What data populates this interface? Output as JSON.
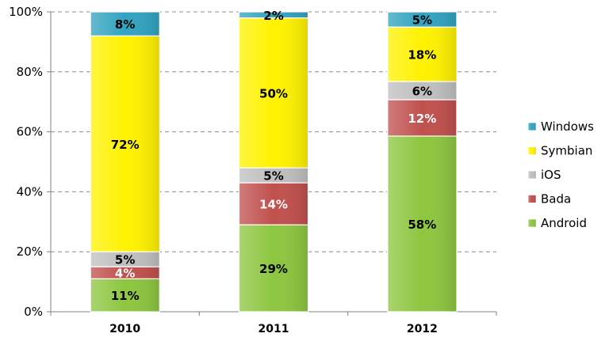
{
  "chart_data": {
    "type": "bar",
    "stacked": true,
    "categories": [
      "2010",
      "2011",
      "2012"
    ],
    "series": [
      {
        "name": "Android",
        "values": [
          11,
          29,
          58
        ],
        "labels": [
          "11%",
          "29%",
          "58%"
        ],
        "color": "#8DC63F"
      },
      {
        "name": "Bada",
        "values": [
          4,
          14,
          12
        ],
        "labels": [
          "4%",
          "14%",
          "12%"
        ],
        "color": "#C0504D"
      },
      {
        "name": "iOS",
        "values": [
          5,
          5,
          6
        ],
        "labels": [
          "5%",
          "5%",
          "6%"
        ],
        "color": "#BFBFBF"
      },
      {
        "name": "Symbian",
        "values": [
          72,
          50,
          18
        ],
        "labels": [
          "72%",
          "50%",
          "18%"
        ],
        "color": "#FFF200"
      },
      {
        "name": "Windows",
        "values": [
          8,
          2,
          5
        ],
        "labels": [
          "8%",
          "2%",
          "5%"
        ],
        "color": "#31A3C0"
      }
    ],
    "ylim": [
      0,
      100
    ],
    "yticks": [
      0,
      20,
      40,
      60,
      80,
      100
    ],
    "ytick_labels": [
      "0%",
      "20%",
      "40%",
      "60%",
      "80%",
      "100%"
    ],
    "grid": true,
    "legend": {
      "placement": "right",
      "order": [
        "Windows",
        "Symbian",
        "iOS",
        "Bada",
        "Android"
      ]
    }
  }
}
